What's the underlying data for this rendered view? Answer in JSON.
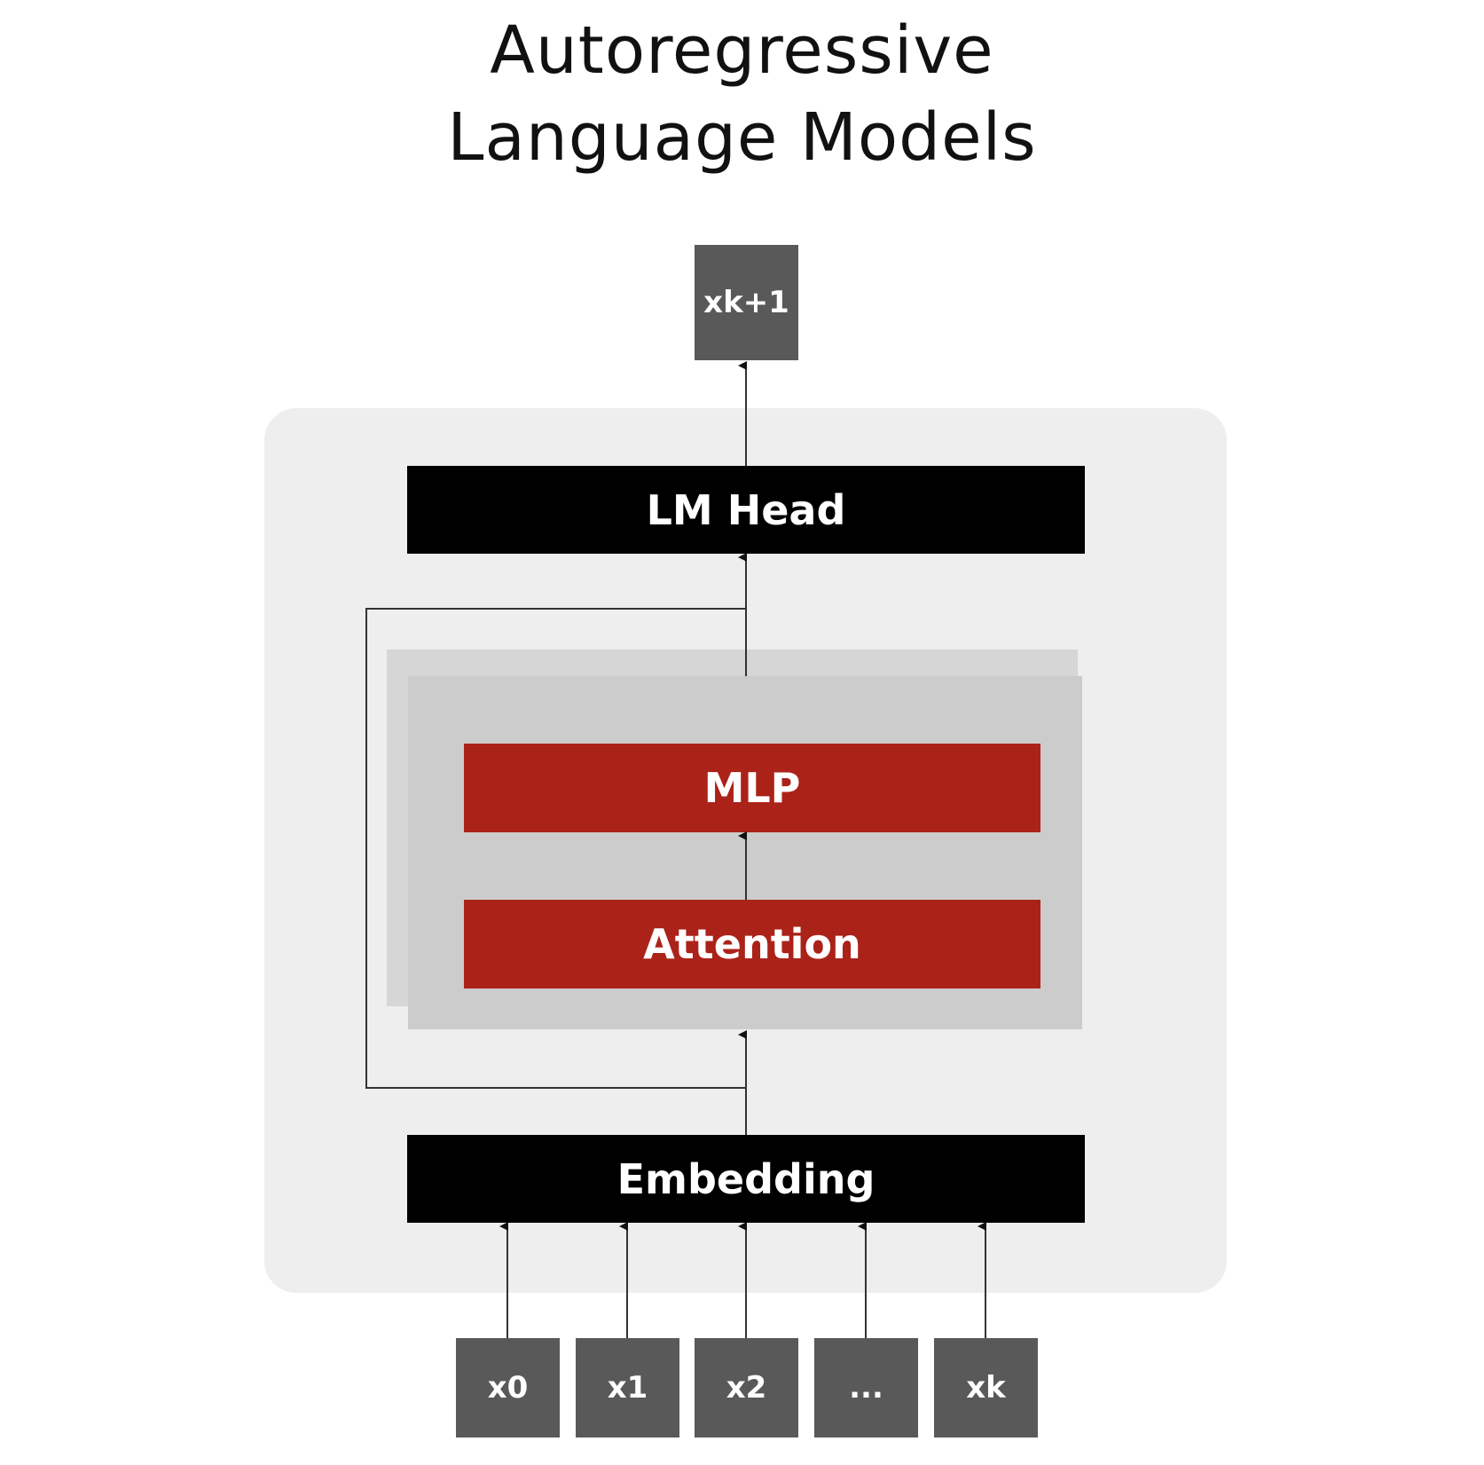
{
  "title": {
    "line1": "Autoregressive",
    "line2": "Language Models"
  },
  "output_token": "xk+1",
  "blocks": {
    "lm_head": "LM Head",
    "mlp": "MLP",
    "attention": "Attention",
    "embedding": "Embedding"
  },
  "input_tokens": [
    "x0",
    "x1",
    "x2",
    "...",
    "xk"
  ],
  "colors": {
    "accent_red": "#ab2219",
    "block_black": "#000000",
    "token_gray": "#595959",
    "panel_bg": "#eeeeee"
  }
}
